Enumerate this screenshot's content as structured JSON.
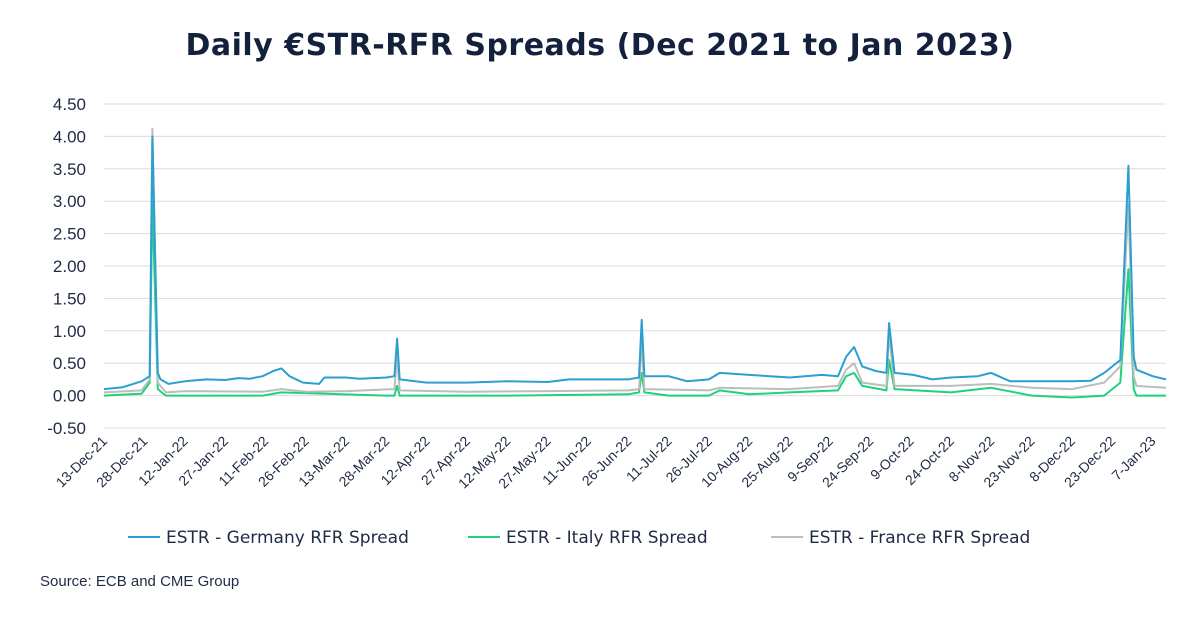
{
  "source": "Source: ECB and CME Group",
  "chart_data": {
    "type": "line",
    "title": "Daily €STR-RFR Spreads (Dec 2021 to Jan 2023)",
    "xlabel": "",
    "ylabel": "",
    "ylim": [
      -0.5,
      4.5
    ],
    "y_ticks": [
      "-0.50",
      "0.00",
      "0.50",
      "1.00",
      "1.50",
      "2.00",
      "2.50",
      "3.00",
      "3.50",
      "4.00",
      "4.50"
    ],
    "x_ticks": [
      "13-Dec-21",
      "28-Dec-21",
      "12-Jan-22",
      "27-Jan-22",
      "11-Feb-22",
      "26-Feb-22",
      "13-Mar-22",
      "28-Mar-22",
      "12-Apr-22",
      "27-Apr-22",
      "12-May-22",
      "27-May-22",
      "11-Jun-22",
      "26-Jun-22",
      "11-Jul-22",
      "26-Jul-22",
      "10-Aug-22",
      "25-Aug-22",
      "9-Sep-22",
      "24-Sep-22",
      "9-Oct-22",
      "24-Oct-22",
      "8-Nov-22",
      "23-Nov-22",
      "8-Dec-22",
      "23-Dec-22",
      "7-Jan-23"
    ],
    "grid": true,
    "legend_position": "bottom",
    "x_start": "2021-12-13",
    "x_end": "2023-01-12",
    "series": [
      {
        "name": "ESTR - Germany RFR Spread",
        "color": "#2a9fd0",
        "points": [
          [
            "2021-12-13",
            0.1
          ],
          [
            "2021-12-20",
            0.13
          ],
          [
            "2021-12-27",
            0.22
          ],
          [
            "2021-12-30",
            0.3
          ],
          [
            "2021-12-31",
            4.0
          ],
          [
            "2022-01-02",
            0.35
          ],
          [
            "2022-01-03",
            0.25
          ],
          [
            "2022-01-06",
            0.18
          ],
          [
            "2022-01-12",
            0.22
          ],
          [
            "2022-01-20",
            0.25
          ],
          [
            "2022-01-27",
            0.24
          ],
          [
            "2022-02-01",
            0.27
          ],
          [
            "2022-02-05",
            0.26
          ],
          [
            "2022-02-10",
            0.3
          ],
          [
            "2022-02-14",
            0.38
          ],
          [
            "2022-02-17",
            0.42
          ],
          [
            "2022-02-20",
            0.3
          ],
          [
            "2022-02-25",
            0.2
          ],
          [
            "2022-03-03",
            0.18
          ],
          [
            "2022-03-05",
            0.28
          ],
          [
            "2022-03-13",
            0.28
          ],
          [
            "2022-03-18",
            0.26
          ],
          [
            "2022-03-28",
            0.28
          ],
          [
            "2022-03-31",
            0.3
          ],
          [
            "2022-04-01",
            0.88
          ],
          [
            "2022-04-02",
            0.25
          ],
          [
            "2022-04-12",
            0.2
          ],
          [
            "2022-04-27",
            0.2
          ],
          [
            "2022-05-12",
            0.22
          ],
          [
            "2022-05-27",
            0.21
          ],
          [
            "2022-06-04",
            0.25
          ],
          [
            "2022-06-11",
            0.25
          ],
          [
            "2022-06-26",
            0.25
          ],
          [
            "2022-06-30",
            0.28
          ],
          [
            "2022-07-01",
            1.17
          ],
          [
            "2022-07-02",
            0.3
          ],
          [
            "2022-07-11",
            0.3
          ],
          [
            "2022-07-18",
            0.22
          ],
          [
            "2022-07-26",
            0.25
          ],
          [
            "2022-07-30",
            0.35
          ],
          [
            "2022-08-10",
            0.32
          ],
          [
            "2022-08-25",
            0.28
          ],
          [
            "2022-09-06",
            0.32
          ],
          [
            "2022-09-12",
            0.3
          ],
          [
            "2022-09-15",
            0.6
          ],
          [
            "2022-09-18",
            0.75
          ],
          [
            "2022-09-21",
            0.45
          ],
          [
            "2022-09-26",
            0.38
          ],
          [
            "2022-09-30",
            0.35
          ],
          [
            "2022-10-01",
            1.12
          ],
          [
            "2022-10-03",
            0.35
          ],
          [
            "2022-10-10",
            0.32
          ],
          [
            "2022-10-17",
            0.25
          ],
          [
            "2022-10-24",
            0.28
          ],
          [
            "2022-11-03",
            0.3
          ],
          [
            "2022-11-08",
            0.35
          ],
          [
            "2022-11-15",
            0.22
          ],
          [
            "2022-11-23",
            0.22
          ],
          [
            "2022-12-08",
            0.22
          ],
          [
            "2022-12-15",
            0.23
          ],
          [
            "2022-12-20",
            0.35
          ],
          [
            "2022-12-26",
            0.55
          ],
          [
            "2022-12-29",
            3.55
          ],
          [
            "2022-12-31",
            0.6
          ],
          [
            "2023-01-01",
            0.4
          ],
          [
            "2023-01-07",
            0.3
          ],
          [
            "2023-01-12",
            0.25
          ]
        ]
      },
      {
        "name": "ESTR - Italy RFR Spread",
        "color": "#1fd17c",
        "points": [
          [
            "2021-12-13",
            0.0
          ],
          [
            "2021-12-27",
            0.03
          ],
          [
            "2021-12-30",
            0.2
          ],
          [
            "2021-12-31",
            3.0
          ],
          [
            "2022-01-02",
            0.1
          ],
          [
            "2022-01-05",
            0.0
          ],
          [
            "2022-02-10",
            0.0
          ],
          [
            "2022-02-17",
            0.05
          ],
          [
            "2022-03-28",
            0.0
          ],
          [
            "2022-03-31",
            0.0
          ],
          [
            "2022-04-01",
            0.15
          ],
          [
            "2022-04-02",
            0.0
          ],
          [
            "2022-05-12",
            0.0
          ],
          [
            "2022-06-26",
            0.02
          ],
          [
            "2022-06-30",
            0.05
          ],
          [
            "2022-07-01",
            0.35
          ],
          [
            "2022-07-02",
            0.05
          ],
          [
            "2022-07-11",
            0.0
          ],
          [
            "2022-07-26",
            0.0
          ],
          [
            "2022-07-30",
            0.08
          ],
          [
            "2022-08-10",
            0.02
          ],
          [
            "2022-08-25",
            0.05
          ],
          [
            "2022-09-12",
            0.08
          ],
          [
            "2022-09-15",
            0.3
          ],
          [
            "2022-09-18",
            0.35
          ],
          [
            "2022-09-21",
            0.15
          ],
          [
            "2022-09-30",
            0.08
          ],
          [
            "2022-10-01",
            0.55
          ],
          [
            "2022-10-03",
            0.1
          ],
          [
            "2022-10-24",
            0.05
          ],
          [
            "2022-11-08",
            0.12
          ],
          [
            "2022-11-23",
            0.0
          ],
          [
            "2022-12-08",
            -0.03
          ],
          [
            "2022-12-20",
            0.0
          ],
          [
            "2022-12-26",
            0.2
          ],
          [
            "2022-12-29",
            1.95
          ],
          [
            "2022-12-31",
            0.1
          ],
          [
            "2023-01-01",
            0.0
          ],
          [
            "2023-01-12",
            0.0
          ]
        ]
      },
      {
        "name": "ESTR - France RFR Spread",
        "color": "#bdbdbd",
        "points": [
          [
            "2021-12-13",
            0.05
          ],
          [
            "2021-12-27",
            0.08
          ],
          [
            "2021-12-30",
            0.25
          ],
          [
            "2021-12-31",
            4.12
          ],
          [
            "2022-01-02",
            0.2
          ],
          [
            "2022-01-05",
            0.05
          ],
          [
            "2022-01-12",
            0.07
          ],
          [
            "2022-02-10",
            0.06
          ],
          [
            "2022-02-17",
            0.1
          ],
          [
            "2022-02-26",
            0.06
          ],
          [
            "2022-03-13",
            0.07
          ],
          [
            "2022-03-31",
            0.1
          ],
          [
            "2022-04-01",
            0.6
          ],
          [
            "2022-04-02",
            0.08
          ],
          [
            "2022-04-27",
            0.06
          ],
          [
            "2022-05-27",
            0.07
          ],
          [
            "2022-06-26",
            0.08
          ],
          [
            "2022-06-30",
            0.1
          ],
          [
            "2022-07-01",
            0.8
          ],
          [
            "2022-07-02",
            0.1
          ],
          [
            "2022-07-26",
            0.08
          ],
          [
            "2022-07-30",
            0.12
          ],
          [
            "2022-08-25",
            0.1
          ],
          [
            "2022-09-12",
            0.15
          ],
          [
            "2022-09-15",
            0.4
          ],
          [
            "2022-09-18",
            0.5
          ],
          [
            "2022-09-21",
            0.2
          ],
          [
            "2022-09-30",
            0.15
          ],
          [
            "2022-10-01",
            0.95
          ],
          [
            "2022-10-03",
            0.15
          ],
          [
            "2022-10-24",
            0.15
          ],
          [
            "2022-11-08",
            0.18
          ],
          [
            "2022-11-23",
            0.12
          ],
          [
            "2022-12-08",
            0.1
          ],
          [
            "2022-12-20",
            0.2
          ],
          [
            "2022-12-26",
            0.45
          ],
          [
            "2022-12-29",
            2.95
          ],
          [
            "2022-12-31",
            0.3
          ],
          [
            "2023-01-01",
            0.15
          ],
          [
            "2023-01-12",
            0.12
          ]
        ]
      }
    ]
  }
}
